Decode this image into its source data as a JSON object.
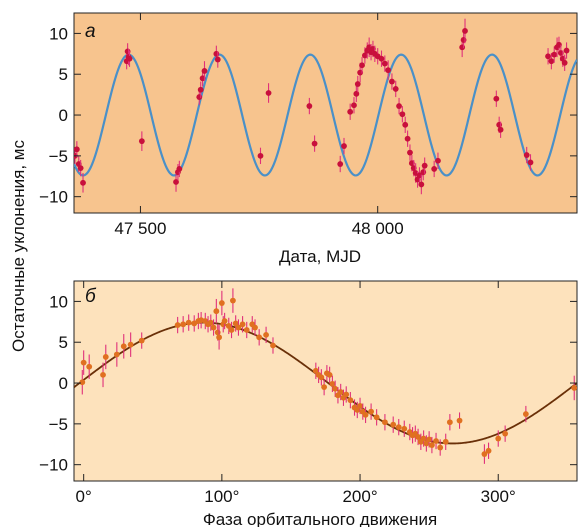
{
  "figure": {
    "shared_ylabel": "Остаточные уклонения, мс"
  },
  "chart_data": [
    {
      "type": "scatter",
      "panel_label": "а",
      "xlabel": "Дата, MJD",
      "ylabel": "Остаточные уклонения, мс",
      "xlim": [
        47360,
        48420
      ],
      "ylim": [
        -12,
        12.5
      ],
      "x_ticks": [
        47500,
        48000
      ],
      "x_tick_labels": [
        "47 500",
        "48 000"
      ],
      "y_ticks": [
        10,
        5,
        0,
        -5,
        -10
      ],
      "y_tick_labels": [
        "10",
        "5",
        "0",
        "−5",
        "−10"
      ],
      "background_color": "#f7c48e",
      "model_curve": {
        "amplitude": 7.4,
        "period_days": 191.5,
        "peak_x": 47475,
        "color": "#4a90c8"
      },
      "point_color": "#c8103c",
      "errorbar_color": "#e0307a",
      "points": [
        [
          47362,
          -5,
          1
        ],
        [
          47366,
          -4.2,
          1
        ],
        [
          47370,
          -6,
          1
        ],
        [
          47374,
          -6.5,
          1
        ],
        [
          47379,
          -8.3,
          1.2
        ],
        [
          47471,
          6.6,
          1
        ],
        [
          47473,
          7.8,
          1
        ],
        [
          47475,
          7.1,
          1
        ],
        [
          47477,
          6.9,
          1
        ],
        [
          47503,
          -3.2,
          1.2
        ],
        [
          47575,
          -8.2,
          1.2
        ],
        [
          47579,
          -7,
          1
        ],
        [
          47582,
          -6.6,
          1
        ],
        [
          47624,
          2.2,
          1
        ],
        [
          47627,
          3.1,
          1
        ],
        [
          47631,
          4.5,
          1
        ],
        [
          47635,
          5.4,
          1.2
        ],
        [
          47660,
          7.5,
          1
        ],
        [
          47663,
          6.8,
          1
        ],
        [
          47753,
          -5,
          1
        ],
        [
          47770,
          2.7,
          1.2
        ],
        [
          47856,
          1.1,
          1
        ],
        [
          47867,
          -3.5,
          1
        ],
        [
          47921,
          -6,
          1
        ],
        [
          47929,
          -3.8,
          1
        ],
        [
          47942,
          0.4,
          1
        ],
        [
          47950,
          1.2,
          1
        ],
        [
          47955,
          2.6,
          1
        ],
        [
          47958,
          3.8,
          1
        ],
        [
          47963,
          5.2,
          1.2
        ],
        [
          47967,
          6.1,
          1
        ],
        [
          47973,
          7.3,
          1
        ],
        [
          47978,
          7.9,
          1
        ],
        [
          47982,
          8.3,
          1.2
        ],
        [
          47986,
          7.7,
          1
        ],
        [
          47990,
          8.1,
          1
        ],
        [
          47994,
          7.5,
          1
        ],
        [
          48000,
          7.2,
          1
        ],
        [
          48008,
          6.9,
          1
        ],
        [
          48015,
          6.3,
          1
        ],
        [
          48022,
          5.5,
          1.2
        ],
        [
          48030,
          4.1,
          1
        ],
        [
          48038,
          3.2,
          1
        ],
        [
          48045,
          1.1,
          1
        ],
        [
          48052,
          0.1,
          1
        ],
        [
          48058,
          -1.2,
          1
        ],
        [
          48063,
          -2.9,
          1
        ],
        [
          48068,
          -4.6,
          1
        ],
        [
          48072,
          -5.9,
          1
        ],
        [
          48076,
          -6.5,
          1
        ],
        [
          48080,
          -7.1,
          1.2
        ],
        [
          48084,
          -7.9,
          1
        ],
        [
          48088,
          -7.4,
          1
        ],
        [
          48092,
          -8.5,
          1.2
        ],
        [
          48096,
          -7,
          1
        ],
        [
          48099,
          -6.2,
          1
        ],
        [
          48119,
          -6.6,
          1
        ],
        [
          48127,
          -5.6,
          1
        ],
        [
          48178,
          8.3,
          1.2
        ],
        [
          48181,
          9.2,
          1
        ],
        [
          48184,
          10.3,
          1.5
        ],
        [
          48250,
          2,
          1
        ],
        [
          48256,
          -1.2,
          1
        ],
        [
          48259,
          -1.8,
          1
        ],
        [
          48314,
          -4.9,
          1
        ],
        [
          48322,
          -5.8,
          1
        ],
        [
          48359,
          7.2,
          1
        ],
        [
          48366,
          6.6,
          1
        ],
        [
          48372,
          7.4,
          1
        ],
        [
          48378,
          8.3,
          1.2
        ],
        [
          48382,
          8.6,
          1
        ],
        [
          48386,
          7.6,
          1
        ],
        [
          48390,
          6.9,
          1
        ],
        [
          48394,
          6.4,
          1
        ],
        [
          48398,
          7.9,
          1
        ]
      ]
    },
    {
      "type": "scatter",
      "panel_label": "б",
      "xlabel": "Фаза орбитального движения",
      "ylabel": "Остаточные уклонения, мс",
      "xlim": [
        -7,
        357
      ],
      "ylim": [
        -12,
        12.5
      ],
      "x_ticks": [
        0,
        100,
        200,
        300
      ],
      "x_tick_labels": [
        "0°",
        "100°",
        "200°",
        "300°"
      ],
      "y_ticks": [
        10,
        5,
        0,
        -5,
        -10
      ],
      "y_tick_labels": [
        "10",
        "5",
        "0",
        "−5",
        "−10"
      ],
      "background_color": "#fde2bc",
      "model_curve": {
        "amplitude": 7.4,
        "peak_phase": 87,
        "color": "#6a3008"
      },
      "point_color": "#e07020",
      "errorbar_color": "#e0307a",
      "points": [
        [
          -1,
          0.1,
          1.5
        ],
        [
          0,
          2.5,
          1.5
        ],
        [
          4,
          2,
          1.5
        ],
        [
          14,
          1,
          1.5
        ],
        [
          16,
          3.2,
          1.5
        ],
        [
          24,
          3.5,
          1.5
        ],
        [
          29,
          4.5,
          1.5
        ],
        [
          34,
          4.7,
          1.5
        ],
        [
          42,
          5.2,
          1
        ],
        [
          68,
          7.1,
          1
        ],
        [
          72,
          7.2,
          1
        ],
        [
          76,
          7.4,
          1
        ],
        [
          80,
          7.3,
          1
        ],
        [
          83,
          7.6,
          1
        ],
        [
          85,
          7.7,
          1
        ],
        [
          88,
          7.6,
          1
        ],
        [
          90,
          7.2,
          1
        ],
        [
          92,
          7.4,
          1
        ],
        [
          94,
          6.8,
          1
        ],
        [
          96,
          8.8,
          1.5
        ],
        [
          97,
          6.2,
          1
        ],
        [
          98,
          5.6,
          1.5
        ],
        [
          100,
          9.8,
          1.5
        ],
        [
          101,
          7.2,
          1
        ],
        [
          102,
          7.6,
          1
        ],
        [
          105,
          7,
          1
        ],
        [
          107,
          6.5,
          1
        ],
        [
          108,
          10.1,
          1.5
        ],
        [
          110,
          7.3,
          1
        ],
        [
          112,
          6.8,
          1
        ],
        [
          115,
          7.2,
          1
        ],
        [
          118,
          6.5,
          1
        ],
        [
          122,
          7.2,
          1
        ],
        [
          124,
          6.8,
          1
        ],
        [
          127,
          5.6,
          1
        ],
        [
          132,
          5.9,
          1
        ],
        [
          137,
          4.6,
          1
        ],
        [
          168,
          1.5,
          1
        ],
        [
          170,
          1,
          1
        ],
        [
          172,
          0.7,
          1
        ],
        [
          174,
          -0.5,
          1
        ],
        [
          176,
          1.2,
          1
        ],
        [
          178,
          1,
          1
        ],
        [
          180,
          -0.1,
          1
        ],
        [
          182,
          -0.7,
          1
        ],
        [
          184,
          -1.5,
          1
        ],
        [
          186,
          -1.1,
          1
        ],
        [
          188,
          -1.8,
          1
        ],
        [
          190,
          -1.4,
          1
        ],
        [
          193,
          -2.1,
          1
        ],
        [
          196,
          -3,
          1
        ],
        [
          198,
          -3.3,
          1
        ],
        [
          200,
          -2.8,
          1
        ],
        [
          202,
          -3.5,
          1
        ],
        [
          204,
          -3.9,
          1
        ],
        [
          208,
          -3.5,
          1
        ],
        [
          212,
          -4.2,
          1
        ],
        [
          218,
          -4.8,
          1
        ],
        [
          224,
          -5.1,
          1
        ],
        [
          228,
          -5.4,
          1
        ],
        [
          232,
          -5.6,
          1
        ],
        [
          236,
          -6,
          1
        ],
        [
          238,
          -6.4,
          1
        ],
        [
          240,
          -6.2,
          1
        ],
        [
          242,
          -6.6,
          1
        ],
        [
          244,
          -7.2,
          1
        ],
        [
          246,
          -6.8,
          1
        ],
        [
          248,
          -7.4,
          1
        ],
        [
          250,
          -6.9,
          1
        ],
        [
          252,
          -7.6,
          1
        ],
        [
          255,
          -7.1,
          1
        ],
        [
          258,
          -7.9,
          1
        ],
        [
          262,
          -7.2,
          1
        ],
        [
          265,
          -4.8,
          1
        ],
        [
          272,
          -4.6,
          1
        ],
        [
          290,
          -8.7,
          1.2
        ],
        [
          293,
          -8.3,
          1
        ],
        [
          300,
          -6.8,
          1
        ],
        [
          305,
          -6.2,
          1
        ],
        [
          320,
          -3.8,
          1
        ],
        [
          355,
          -0.6,
          1.5
        ]
      ]
    }
  ]
}
